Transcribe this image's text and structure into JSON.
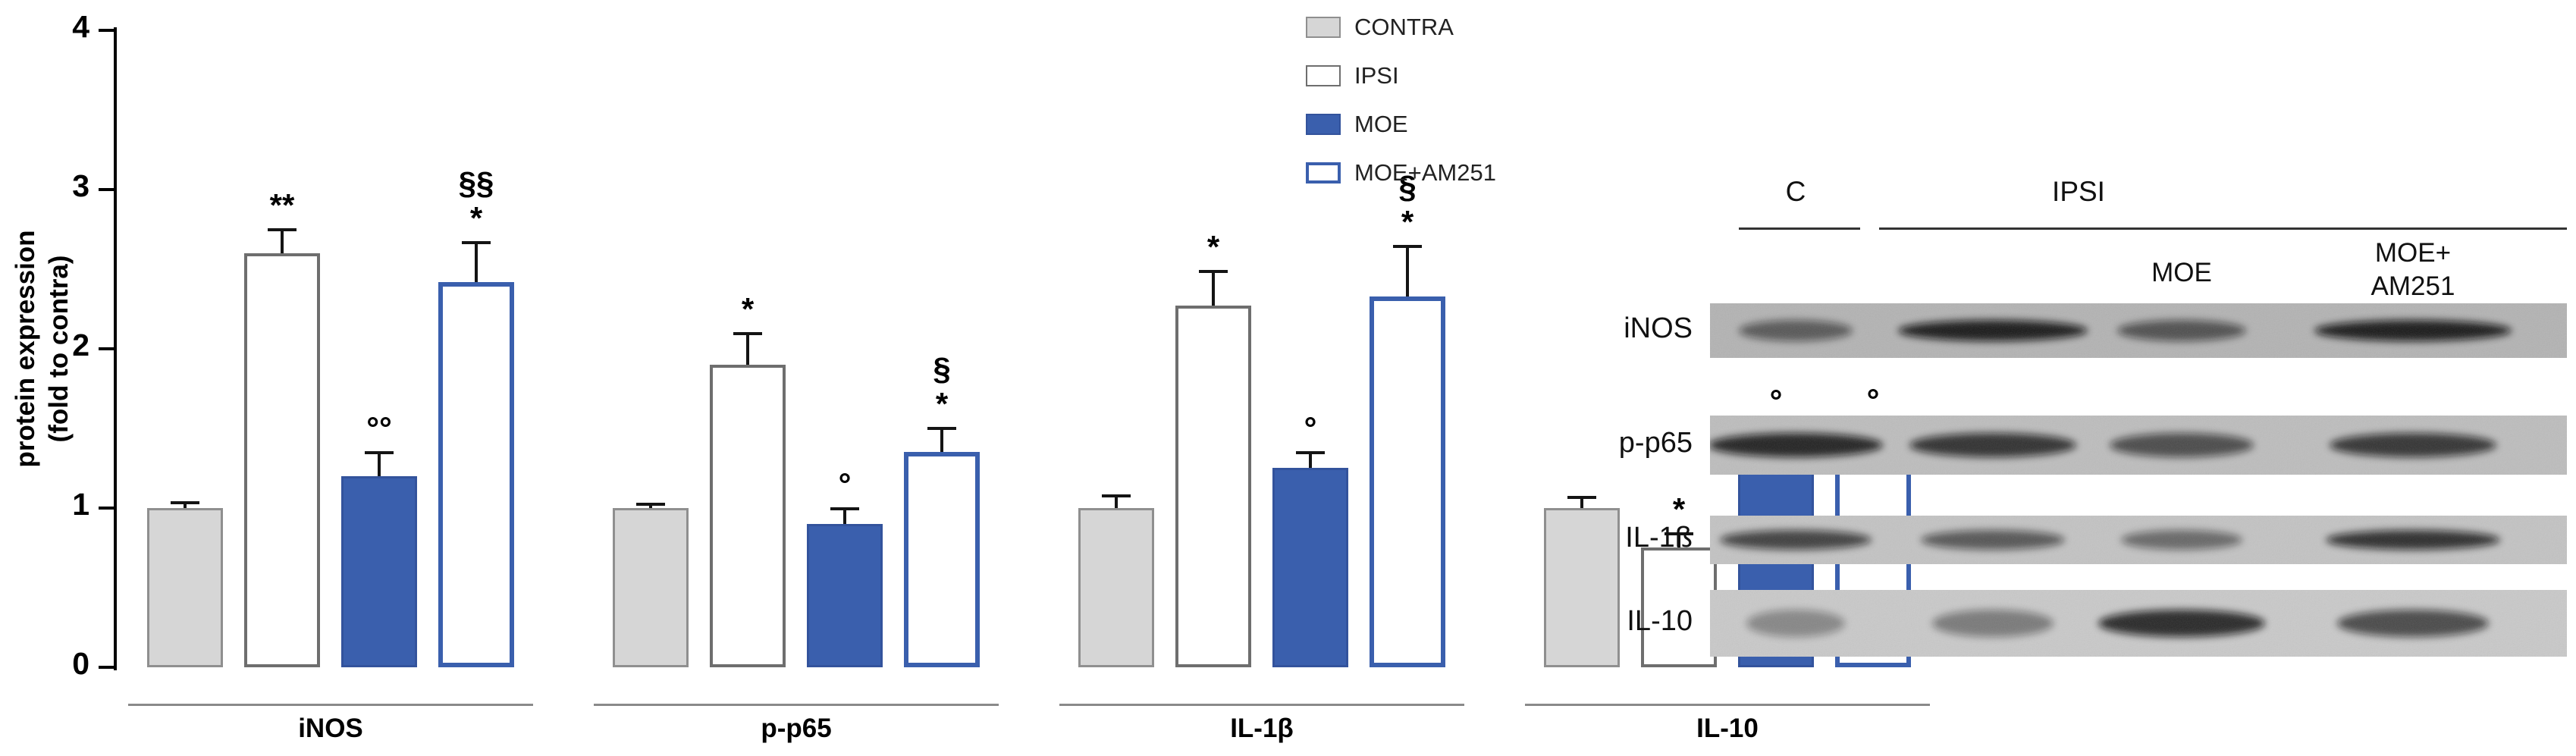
{
  "chart_data": {
    "type": "bar",
    "title": "",
    "ylabel": "protein expression\n(fold to contra)",
    "ylim": [
      0,
      4
    ],
    "yticks": [
      0,
      1,
      2,
      3,
      4
    ],
    "grid": false,
    "legend_position": "top-right",
    "groups": [
      "iNOS",
      "p-p65",
      "IL-1β",
      "IL-10"
    ],
    "series": [
      {
        "name": "CONTRA",
        "fill": "#d6d6d6",
        "border": "#8f8f8f",
        "border_w": 3,
        "values": [
          1.0,
          1.0,
          1.0,
          1.0
        ],
        "errors": [
          0.04,
          0.03,
          0.08,
          0.07
        ],
        "annotations": [
          [],
          [],
          [],
          []
        ]
      },
      {
        "name": "IPSI",
        "fill": "#ffffff",
        "border": "#6e6e6e",
        "border_w": 4,
        "values": [
          2.6,
          1.9,
          2.27,
          0.75
        ],
        "errors": [
          0.15,
          0.2,
          0.22,
          0.09
        ],
        "annotations": [
          [
            "**"
          ],
          [
            "*"
          ],
          [
            "*"
          ],
          [
            "*"
          ]
        ]
      },
      {
        "name": "MOE",
        "fill": "#3a5fad",
        "border": "#33539c",
        "border_w": 3,
        "values": [
          1.2,
          0.9,
          1.25,
          1.37
        ],
        "errors": [
          0.15,
          0.1,
          0.1,
          0.15
        ],
        "annotations": [
          [
            "°°"
          ],
          [
            "°"
          ],
          [
            "°"
          ],
          [
            "°"
          ]
        ]
      },
      {
        "name": "MOE+AM251",
        "fill": "#ffffff",
        "border": "#3a5fad",
        "border_w": 6,
        "values": [
          2.42,
          1.35,
          2.33,
          1.4
        ],
        "errors": [
          0.25,
          0.15,
          0.32,
          0.13
        ],
        "annotations": [
          [
            "§§",
            "*"
          ],
          [
            "§",
            "*"
          ],
          [
            "§",
            "*"
          ],
          [
            "°"
          ]
        ]
      }
    ]
  },
  "blot": {
    "lane_fractions": [
      0.1,
      0.33,
      0.55,
      0.82
    ],
    "header": {
      "c": "C",
      "ipsi": "IPSI",
      "moe": "MOE",
      "moe_am251": "MOE+\nAM251"
    },
    "rows": [
      {
        "label": "iNOS",
        "bg": "#b3b3b3",
        "band_opacity": [
          0.55,
          0.92,
          0.6,
          0.92
        ],
        "band_rx": [
          75,
          125,
          85,
          130
        ]
      },
      {
        "label": "p-p65",
        "bg": "#bdbdbd",
        "band_opacity": [
          0.88,
          0.8,
          0.65,
          0.78
        ],
        "band_rx": [
          115,
          110,
          95,
          110
        ]
      },
      {
        "label": "IL-1ß",
        "bg": "#c3c3c3",
        "band_opacity": [
          0.72,
          0.6,
          0.5,
          0.82
        ],
        "band_rx": [
          100,
          95,
          80,
          115
        ]
      },
      {
        "label": "IL-10",
        "bg": "#c9c9c9",
        "band_opacity": [
          0.35,
          0.42,
          0.85,
          0.68
        ],
        "band_rx": [
          65,
          80,
          110,
          100
        ]
      }
    ]
  }
}
